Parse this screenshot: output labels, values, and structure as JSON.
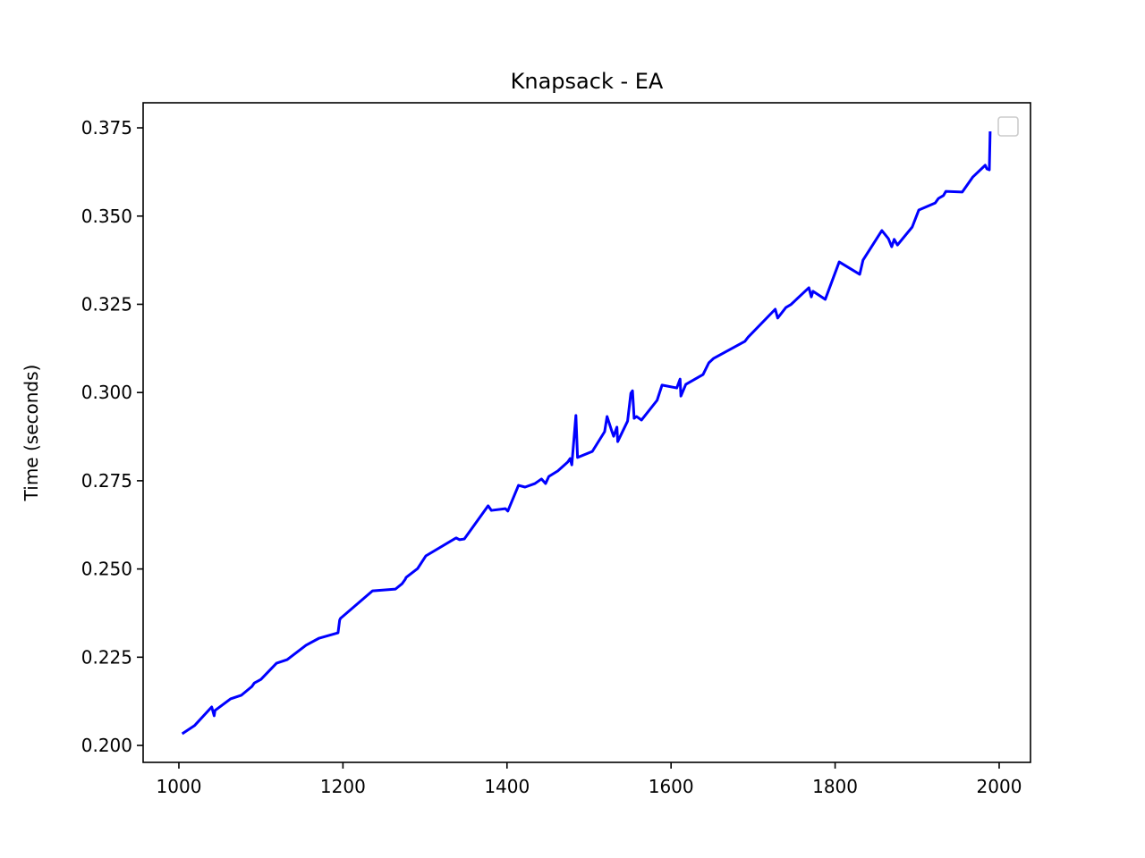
{
  "chart_data": {
    "type": "line",
    "title": "Knapsack - EA",
    "y_label": "Time (seconds)",
    "x": [
      1004,
      1019,
      1040,
      1043,
      1044,
      1063,
      1076,
      1089,
      1092,
      1100,
      1119,
      1132,
      1155,
      1171,
      1194,
      1196,
      1197,
      1236,
      1264,
      1272,
      1276,
      1277,
      1291,
      1301,
      1338,
      1342,
      1348,
      1377,
      1381,
      1398,
      1401,
      1414,
      1422,
      1434,
      1442,
      1447,
      1451,
      1462,
      1474,
      1477,
      1479,
      1484,
      1486,
      1504,
      1519,
      1522,
      1528,
      1530,
      1534,
      1535,
      1547,
      1551,
      1553,
      1555,
      1558,
      1564,
      1583,
      1589,
      1607,
      1611,
      1612,
      1618,
      1639,
      1646,
      1652,
      1690,
      1694,
      1727,
      1730,
      1740,
      1746,
      1768,
      1771,
      1773,
      1788,
      1805,
      1830,
      1834,
      1857,
      1865,
      1869,
      1872,
      1876,
      1894,
      1902,
      1922,
      1926,
      1932,
      1935,
      1955,
      1968,
      1983,
      1985,
      1988,
      1989
    ],
    "series": [
      {
        "color": "#0000ff",
        "values": [
          0.2033,
          0.2056,
          0.2109,
          0.2084,
          0.2099,
          0.2132,
          0.2142,
          0.2167,
          0.2177,
          0.2187,
          0.2233,
          0.2243,
          0.2284,
          0.2304,
          0.2319,
          0.2355,
          0.236,
          0.2438,
          0.2443,
          0.2458,
          0.2471,
          0.2476,
          0.2501,
          0.2537,
          0.2588,
          0.2583,
          0.2585,
          0.2679,
          0.2666,
          0.2671,
          0.2664,
          0.2737,
          0.2732,
          0.2742,
          0.2755,
          0.2742,
          0.2762,
          0.2778,
          0.2803,
          0.2813,
          0.2795,
          0.2935,
          0.2816,
          0.2833,
          0.2889,
          0.2932,
          0.2889,
          0.2876,
          0.2902,
          0.2861,
          0.2919,
          0.2998,
          0.3005,
          0.2927,
          0.2932,
          0.2922,
          0.2978,
          0.3021,
          0.3013,
          0.3038,
          0.299,
          0.3023,
          0.3051,
          0.3084,
          0.3097,
          0.3145,
          0.3157,
          0.3236,
          0.3211,
          0.3241,
          0.3249,
          0.3297,
          0.3271,
          0.3287,
          0.3264,
          0.337,
          0.3335,
          0.3375,
          0.3459,
          0.3436,
          0.3413,
          0.3434,
          0.3418,
          0.3469,
          0.3517,
          0.3537,
          0.355,
          0.3558,
          0.357,
          0.3568,
          0.3611,
          0.3644,
          0.3634,
          0.3631,
          0.374
        ]
      }
    ],
    "xlim": [
      956.4,
      2038.2
    ],
    "xticks": [
      1000,
      1200,
      1400,
      1600,
      1800,
      2000
    ],
    "ylim": [
      0.1952,
      0.3821
    ],
    "yticks": [
      {
        "value": 0.2,
        "label": "0.200"
      },
      0.225,
      {
        "value": 0.25,
        "label": "0.250"
      },
      0.275,
      {
        "value": 0.3,
        "label": "0.300"
      },
      0.325,
      {
        "value": 0.35,
        "label": "0.350"
      },
      0.375
    ],
    "grid": false
  }
}
